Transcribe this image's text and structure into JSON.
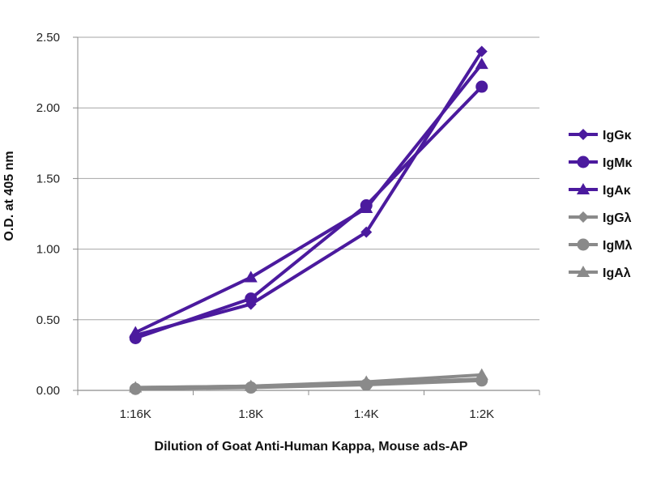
{
  "chart_data": {
    "type": "line",
    "title": "",
    "xlabel": "Dilution of Goat Anti-Human Kappa, Mouse ads-AP",
    "ylabel": "O.D. at 405 nm",
    "categories": [
      "1:16K",
      "1:8K",
      "1:4K",
      "1:2K"
    ],
    "ylim": [
      0,
      2.5
    ],
    "yticks": [
      "0.00",
      "0.50",
      "1.00",
      "1.50",
      "2.00",
      "2.50"
    ],
    "grid": true,
    "legend_position": "right",
    "series": [
      {
        "name": "IgGκ",
        "marker": "diamond",
        "color": "#4b1a9e",
        "values": [
          0.39,
          0.61,
          1.12,
          2.4
        ]
      },
      {
        "name": "IgMκ",
        "marker": "circle",
        "color": "#4b1a9e",
        "values": [
          0.37,
          0.65,
          1.31,
          2.15
        ]
      },
      {
        "name": "IgAκ",
        "marker": "triangle",
        "color": "#4b1a9e",
        "values": [
          0.41,
          0.8,
          1.29,
          2.31
        ]
      },
      {
        "name": "IgGλ",
        "marker": "diamond",
        "color": "#8a8a8a",
        "values": [
          0.02,
          0.03,
          0.05,
          0.08
        ]
      },
      {
        "name": "IgMλ",
        "marker": "circle",
        "color": "#8a8a8a",
        "values": [
          0.01,
          0.02,
          0.04,
          0.07
        ]
      },
      {
        "name": "IgAλ",
        "marker": "triangle",
        "color": "#8a8a8a",
        "values": [
          0.02,
          0.03,
          0.06,
          0.11
        ]
      }
    ]
  }
}
